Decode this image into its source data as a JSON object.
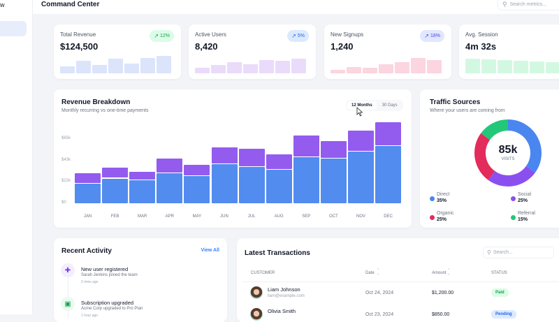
{
  "header": {
    "title": "Command Center",
    "search_placeholder": "Search metrics..."
  },
  "sidebar": {
    "partial_text": "w"
  },
  "kpis": [
    {
      "label": "Total Revenue",
      "value": "$124,500",
      "change": "12%",
      "trend_icon": "trending-up-icon",
      "badge_bg": "#dcfce7",
      "badge_fg": "#16a34a",
      "spark_color": "#dbe4fb",
      "spark": [
        0.4,
        0.7,
        0.45,
        0.8,
        0.55,
        0.85,
        0.95
      ]
    },
    {
      "label": "Active Users",
      "value": "8,420",
      "change": "5%",
      "trend_icon": "trending-up-icon",
      "badge_bg": "#dbeafe",
      "badge_fg": "#2563eb",
      "spark_color": "#eadbfb",
      "spark": [
        0.3,
        0.45,
        0.6,
        0.5,
        0.75,
        0.7,
        0.8
      ]
    },
    {
      "label": "New Signups",
      "value": "1,240",
      "change": "18%",
      "trend_icon": "trending-up-icon",
      "badge_bg": "#e0e7ff",
      "badge_fg": "#4f46e5",
      "spark_color": "#fbd5df",
      "spark": [
        0.2,
        0.35,
        0.3,
        0.5,
        0.6,
        0.85,
        0.75
      ]
    },
    {
      "label": "Avg. Session",
      "value": "4m 32s",
      "spark_color": "#d3f8e2",
      "spark": [
        0.8,
        0.78,
        0.74,
        0.7,
        0.66,
        0.6
      ]
    }
  ],
  "revenue": {
    "title": "Revenue Breakdown",
    "subtitle": "Monthly recurring vs one-time payments",
    "toggle": [
      "12 Months",
      "30 Days"
    ],
    "active_toggle": "12 Months"
  },
  "chart_data": {
    "type": "bar",
    "stacked": true,
    "categories": [
      "JAN",
      "FEB",
      "MAR",
      "APR",
      "MAY",
      "JUN",
      "JUL",
      "AUG",
      "SEP",
      "OCT",
      "NOV",
      "DEC"
    ],
    "series": [
      {
        "values": [
          20,
          25,
          23.5,
          30.5,
          27.5,
          39.5,
          36.5,
          34,
          46.5,
          45,
          52,
          57.5
        ],
        "color": "#528cef"
      },
      {
        "values": [
          10,
          11,
          8,
          14.5,
          11.5,
          17,
          18.5,
          15,
          21.5,
          18,
          21.5,
          24
        ],
        "color": "#945bef"
      }
    ],
    "yticks": [
      "$0",
      "$22k",
      "$43k",
      "$65k"
    ],
    "ytick_values": [
      0,
      22,
      43,
      65
    ],
    "ylim": [
      0,
      85
    ],
    "grid": false
  },
  "traffic": {
    "title": "Traffic Sources",
    "subtitle": "Where your users are coming from",
    "center_value": "85k",
    "center_label": "VISITS",
    "sources": [
      {
        "name": "Direct",
        "pct": 35,
        "label": "35%",
        "color": "#4a86ef"
      },
      {
        "name": "Social",
        "pct": 25,
        "label": "25%",
        "color": "#8b4ff0"
      },
      {
        "name": "Organic",
        "pct": 25,
        "label": "25%",
        "color": "#e32b5c"
      },
      {
        "name": "Referral",
        "pct": 15,
        "label": "15%",
        "color": "#22c877"
      }
    ]
  },
  "activity": {
    "title": "Recent Activity",
    "view_all": "View All",
    "items": [
      {
        "icon": "user-plus-icon",
        "title": "New user registered",
        "desc": "Sarah Jenkins joined the team",
        "time": "2 mins ago",
        "color": "#7c3aed",
        "bg": "#f3eefe"
      },
      {
        "icon": "money-icon",
        "title": "Subscription upgraded",
        "desc": "Acme Corp upgraded to Pro Plan",
        "time": "1 hour ago",
        "color": "#16a34a",
        "bg": "#eafaf0"
      }
    ]
  },
  "transactions": {
    "title": "Latest Transactions",
    "search_placeholder": "Search...",
    "columns": [
      "CUSTOMER",
      "Date",
      "Amount",
      "STATUS"
    ],
    "rows": [
      {
        "name": "Liam Johnson",
        "email": "liam@example.com",
        "date": "Oct 24, 2024",
        "amount": "$1,200.00",
        "status": "Paid",
        "status_bg": "#dcfce7",
        "status_fg": "#16a34a"
      },
      {
        "name": "Olivia Smith",
        "email": "",
        "date": "Oct 23, 2024",
        "amount": "$850.00",
        "status": "Pending",
        "status_bg": "#dbeafe",
        "status_fg": "#2563eb"
      }
    ]
  }
}
